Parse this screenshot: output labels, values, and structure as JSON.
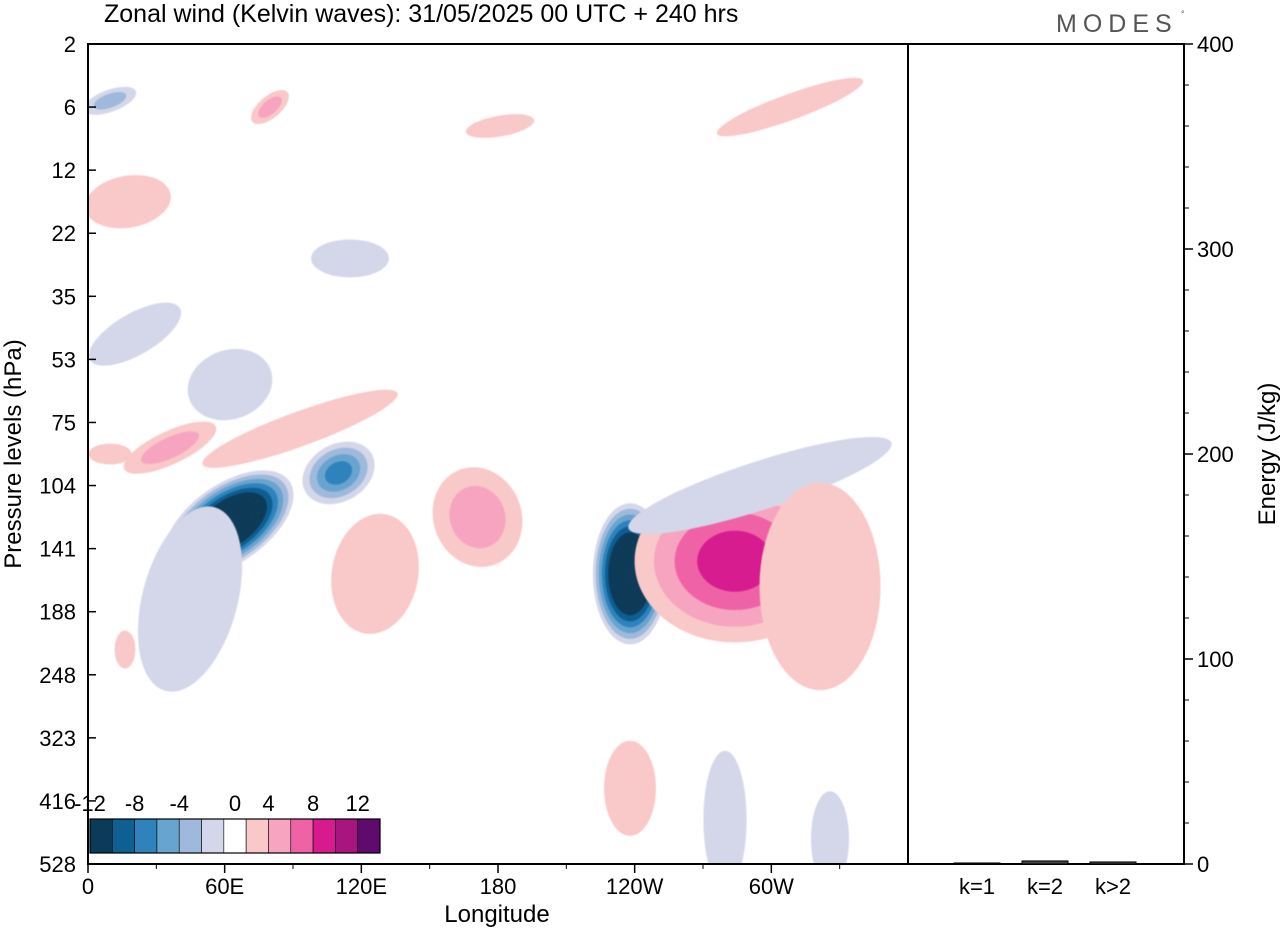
{
  "header": {
    "title": "Zonal wind (Kelvin waves):  31/05/2025  00 UTC  + 240 hrs",
    "brand": "MODES"
  },
  "chart_data": [
    {
      "type": "heatmap",
      "title": "Zonal wind (Kelvin waves):  31/05/2025  00 UTC  + 240 hrs",
      "xlabel": "Longitude",
      "ylabel": "Pressure levels (hPa)",
      "x_ticks": [
        "0",
        "60E",
        "120E",
        "180",
        "120W",
        "60W"
      ],
      "x_tick_lon": [
        0,
        60,
        120,
        180,
        240,
        300
      ],
      "xlim": [
        0,
        360
      ],
      "y_ticks": [
        "2",
        "6",
        "12",
        "22",
        "35",
        "53",
        "75",
        "104",
        "141",
        "188",
        "248",
        "323",
        "416",
        "528"
      ],
      "y_scale": "model levels (ticks equally spaced, top to bottom)",
      "colorbar": {
        "labels": [
          "-12",
          "-8",
          "-4",
          "0",
          "4",
          "8",
          "12"
        ],
        "colors": [
          "#0c3a59",
          "#0e5f92",
          "#2f83bc",
          "#67a4cf",
          "#9fb9dc",
          "#d4d7e9",
          "#ffffff",
          "#f9c8c8",
          "#f7a4c0",
          "#ef63a6",
          "#d71b8f",
          "#a8157f",
          "#5e0b6d"
        ]
      },
      "features": [
        {
          "sign": "negative",
          "peak": -20,
          "lon": 62,
          "level": "104-141"
        },
        {
          "sign": "negative",
          "peak": -20,
          "lon": 238,
          "level": "141-188"
        },
        {
          "sign": "positive",
          "peak": 8,
          "lon": 284,
          "level": "141"
        },
        {
          "sign": "positive",
          "peak": 4,
          "lon": 171,
          "level": "104-141"
        },
        {
          "sign": "positive",
          "peak": 4,
          "lon": 36,
          "level": "75-104"
        },
        {
          "sign": "negative",
          "peak": -8,
          "lon": 110,
          "level": "104"
        }
      ]
    },
    {
      "type": "bar",
      "categories": [
        "k=1",
        "k=2",
        "k>2"
      ],
      "values": [
        0.5,
        1.5,
        1
      ],
      "ylabel": "Energy (J/kg)",
      "ylim": [
        0,
        400
      ],
      "y_ticks": [
        "0",
        "100",
        "200",
        "300",
        "400"
      ]
    }
  ]
}
